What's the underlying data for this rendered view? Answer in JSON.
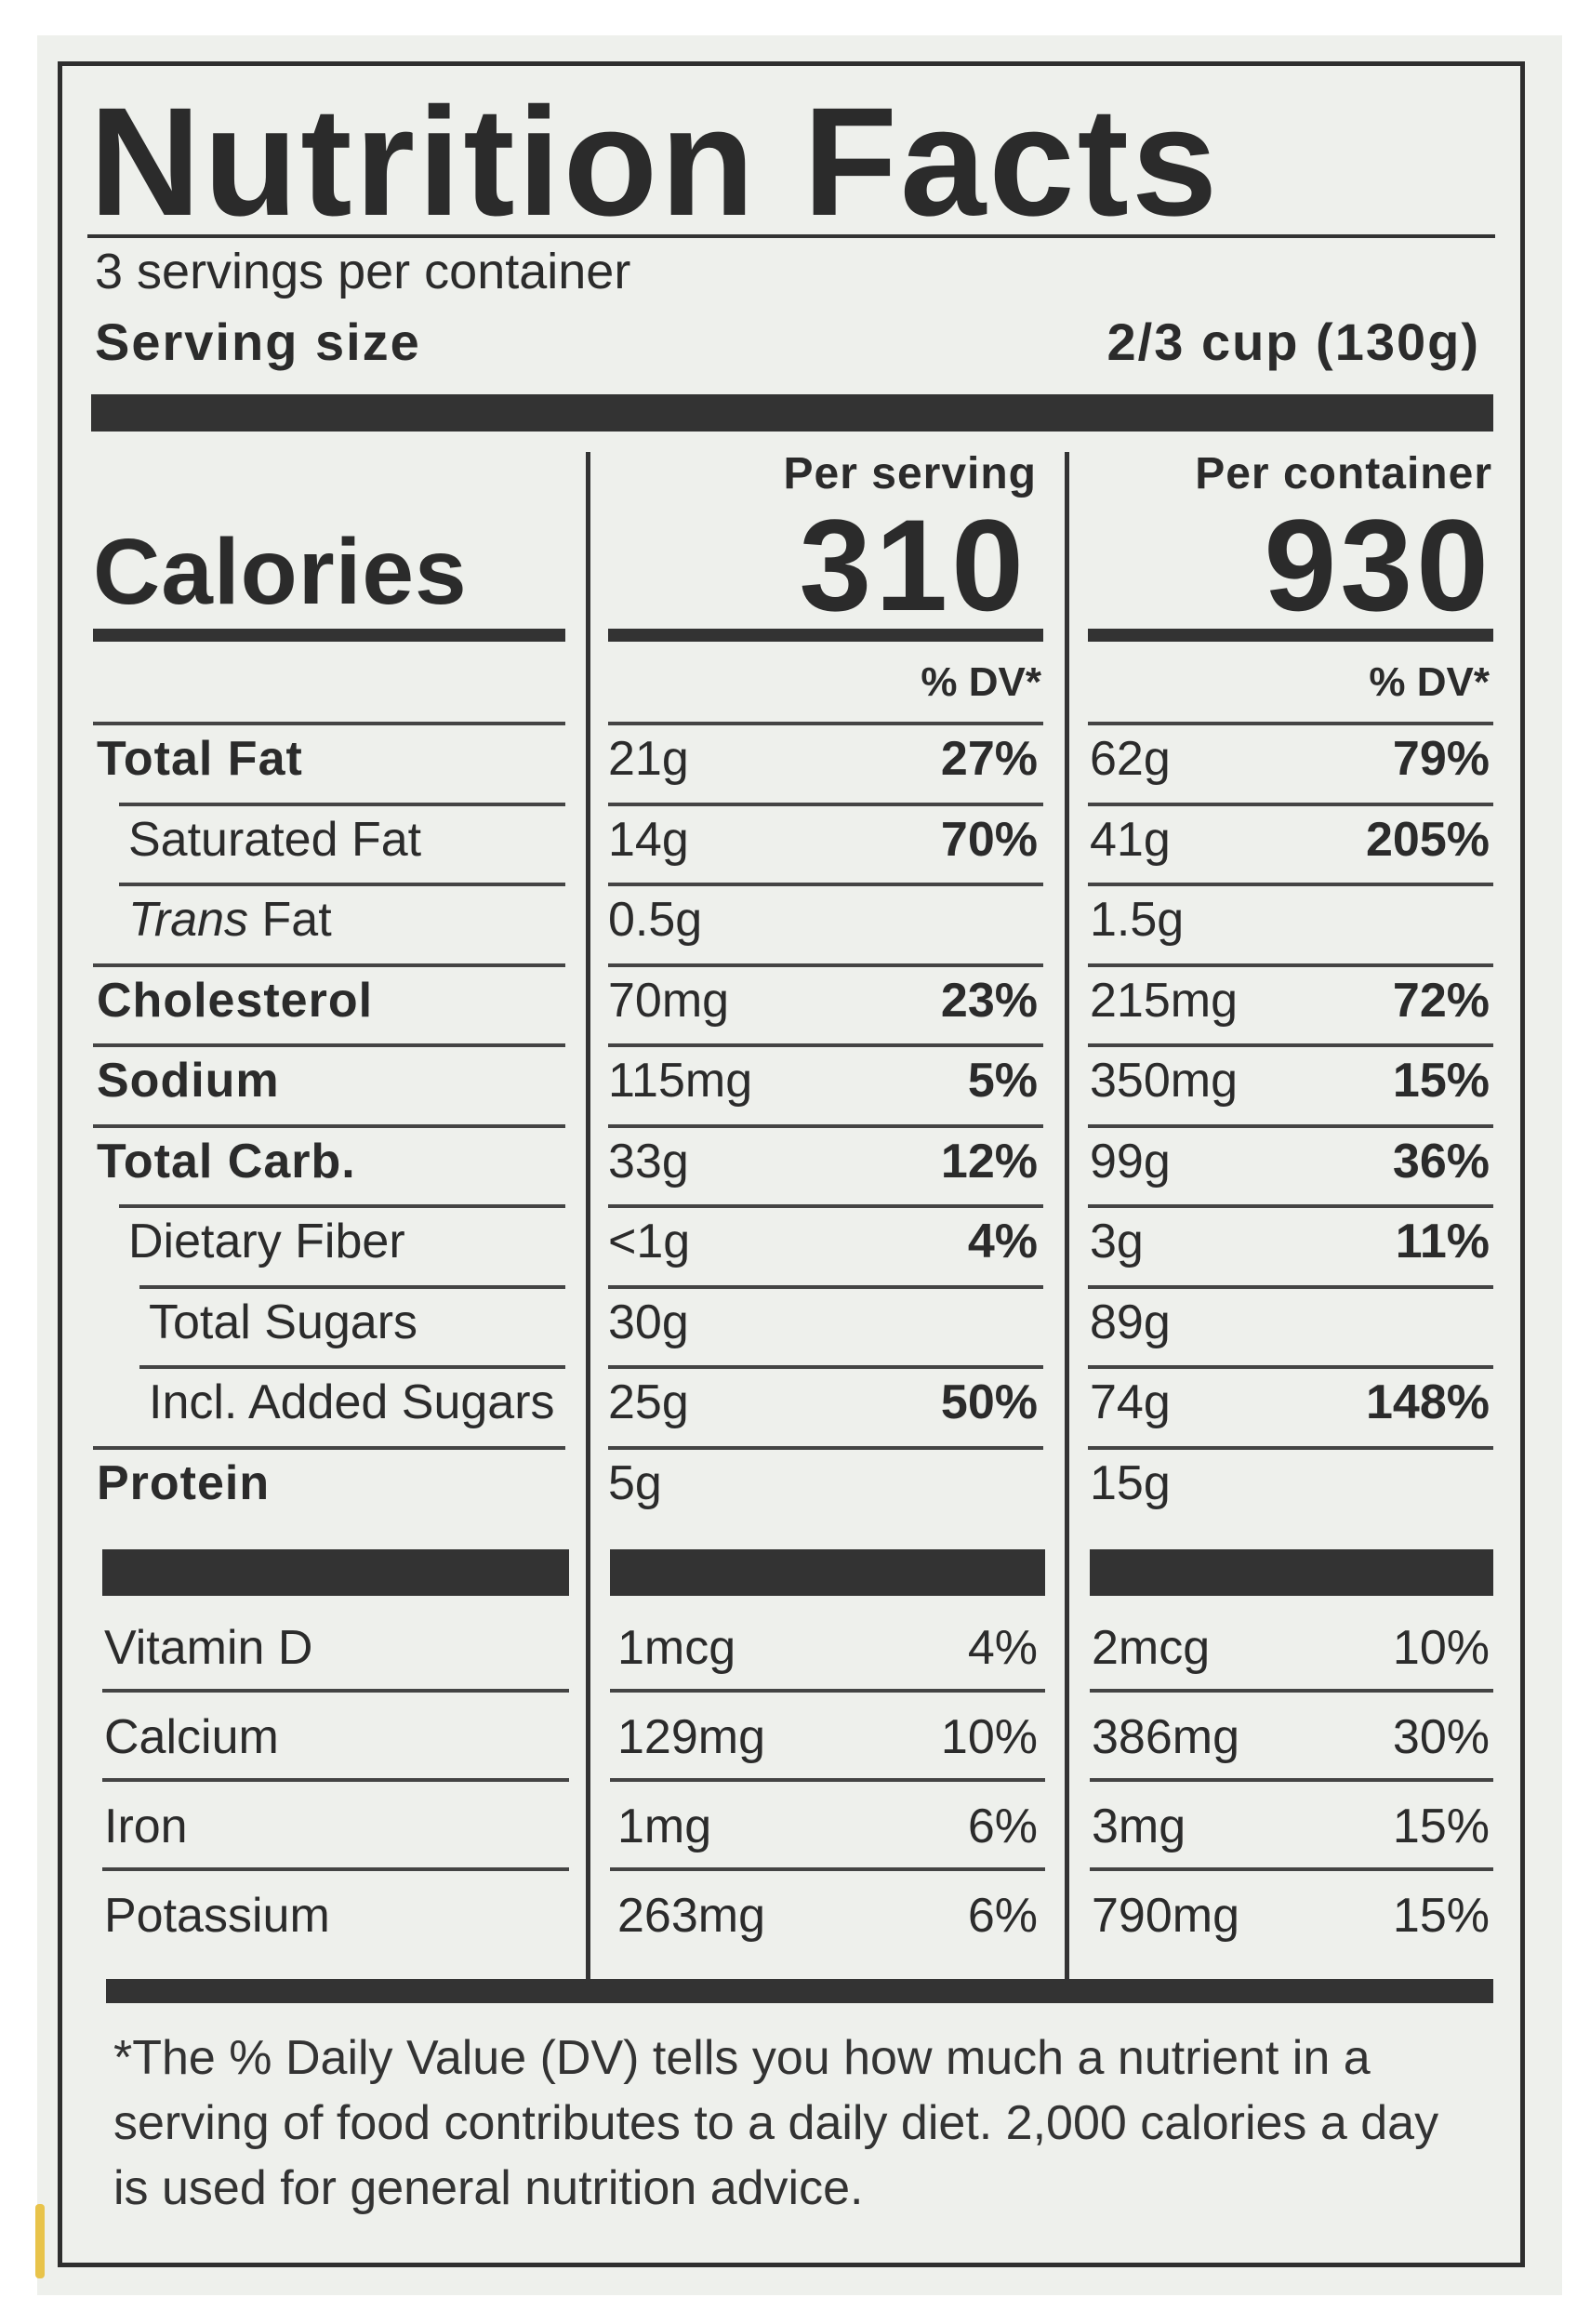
{
  "title": "Nutrition Facts",
  "servings_per_container": "3 servings per container",
  "serving_size_label": "Serving size",
  "serving_size_value": "2/3 cup (130g)",
  "calories_label": "Calories",
  "per_serving_label": "Per serving",
  "per_container_label": "Per container",
  "calories_per_serving": "310",
  "calories_per_container": "930",
  "dv_header": "% DV*",
  "nutrients": [
    {
      "name": "Total Fat",
      "bold": true,
      "indent": 0,
      "serv_amt": "21g",
      "serv_dv": "27%",
      "cont_amt": "62g",
      "cont_dv": "79%"
    },
    {
      "name": "Saturated Fat",
      "bold": false,
      "indent": 1,
      "serv_amt": "14g",
      "serv_dv": "70%",
      "cont_amt": "41g",
      "cont_dv": "205%"
    },
    {
      "name_italic": "Trans",
      "name": " Fat",
      "bold": false,
      "indent": 1,
      "serv_amt": "0.5g",
      "serv_dv": "",
      "cont_amt": "1.5g",
      "cont_dv": ""
    },
    {
      "name": "Cholesterol",
      "bold": true,
      "indent": 0,
      "serv_amt": "70mg",
      "serv_dv": "23%",
      "cont_amt": "215mg",
      "cont_dv": "72%"
    },
    {
      "name": "Sodium",
      "bold": true,
      "indent": 0,
      "serv_amt": "115mg",
      "serv_dv": "5%",
      "cont_amt": "350mg",
      "cont_dv": "15%"
    },
    {
      "name": "Total Carb.",
      "bold": true,
      "indent": 0,
      "serv_amt": "33g",
      "serv_dv": "12%",
      "cont_amt": "99g",
      "cont_dv": "36%"
    },
    {
      "name": "Dietary Fiber",
      "bold": false,
      "indent": 1,
      "serv_amt": "<1g",
      "serv_dv": "4%",
      "cont_amt": "3g",
      "cont_dv": "11%"
    },
    {
      "name": "Total Sugars",
      "bold": false,
      "indent": 2,
      "serv_amt": "30g",
      "serv_dv": "",
      "cont_amt": "89g",
      "cont_dv": ""
    },
    {
      "name": "Incl. Added Sugars",
      "bold": false,
      "indent": 2,
      "serv_amt": "25g",
      "serv_dv": "50%",
      "cont_amt": "74g",
      "cont_dv": "148%"
    },
    {
      "name": "Protein",
      "bold": true,
      "indent": 0,
      "serv_amt": "5g",
      "serv_dv": "",
      "cont_amt": "15g",
      "cont_dv": ""
    }
  ],
  "vitamins": [
    {
      "name": "Vitamin D",
      "serv_amt": "1mcg",
      "serv_dv": "4%",
      "cont_amt": "2mcg",
      "cont_dv": "10%"
    },
    {
      "name": "Calcium",
      "serv_amt": "129mg",
      "serv_dv": "10%",
      "cont_amt": "386mg",
      "cont_dv": "30%"
    },
    {
      "name": "Iron",
      "serv_amt": "1mg",
      "serv_dv": "6%",
      "cont_amt": "3mg",
      "cont_dv": "15%"
    },
    {
      "name": "Potassium",
      "serv_amt": "263mg",
      "serv_dv": "6%",
      "cont_amt": "790mg",
      "cont_dv": "15%"
    }
  ],
  "footnote": "*The % Daily Value (DV) tells you how much a nutrient in a serving of food contributes to a daily diet. 2,000 calories a day is used for general nutrition advice.",
  "colors": {
    "ink": "#2b2b2b",
    "label_bg": "#eef0ec",
    "edge_yellow": "#e8c34a"
  }
}
